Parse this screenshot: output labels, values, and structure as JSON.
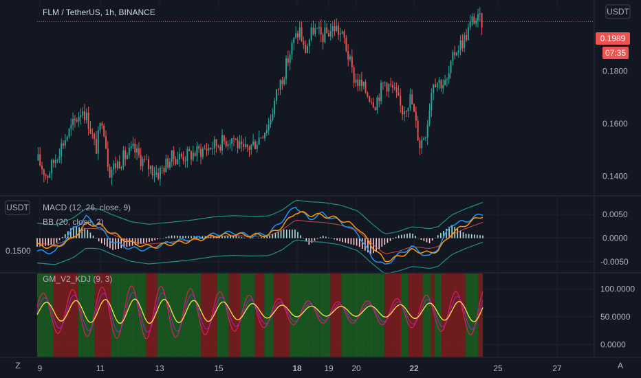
{
  "header": {
    "title": "FLM / TetherUS, 1h, BINANCE",
    "currency_button": "USDT",
    "left_currency_button": "USDT"
  },
  "price_label": {
    "value": "0.1989",
    "countdown": "07:35"
  },
  "macd_panel": {
    "title": "MACD (12, 26, close, 9)",
    "bb_title": "BB (20, close, 2)",
    "left_scale_label": "0.1500"
  },
  "kdj_panel": {
    "title": "GM_V2_KDJ (9, 3)"
  },
  "bottom": {
    "z_button": "Z",
    "a_button": "A"
  },
  "colors": {
    "up": "#26a69a",
    "down": "#ef5350",
    "price_line": "#ef5350",
    "macd": "#2196f3",
    "signal": "#ff9800",
    "bb": "#26a69a",
    "bb_mid": "#ef5350",
    "k": "#9c27b0",
    "d": "#ffeb3b",
    "j": "#e91e63",
    "bg_green": "#1b5e20",
    "bg_red": "#7f1d1d"
  },
  "chart_data": [
    {
      "type": "candlestick",
      "title": "FLM / TetherUS, 1h, BINANCE",
      "x_ticks": [
        "9",
        "11",
        "13",
        "15",
        "18",
        "19",
        "20",
        "22",
        "25",
        "27"
      ],
      "y_ticks": [
        "0.1400",
        "0.1600",
        "0.1800"
      ],
      "ylim": [
        0.1325,
        0.2045
      ],
      "last_price": 0.1989,
      "close_path": [
        {
          "t": 0,
          "v": 0.146
        },
        {
          "t": 0.02,
          "v": 0.14
        },
        {
          "t": 0.05,
          "v": 0.151
        },
        {
          "t": 0.08,
          "v": 0.16
        },
        {
          "t": 0.1,
          "v": 0.166
        },
        {
          "t": 0.115,
          "v": 0.16
        },
        {
          "t": 0.13,
          "v": 0.15
        },
        {
          "t": 0.145,
          "v": 0.163
        },
        {
          "t": 0.16,
          "v": 0.142
        },
        {
          "t": 0.185,
          "v": 0.146
        },
        {
          "t": 0.215,
          "v": 0.15
        },
        {
          "t": 0.24,
          "v": 0.145
        },
        {
          "t": 0.27,
          "v": 0.141
        },
        {
          "t": 0.3,
          "v": 0.147
        },
        {
          "t": 0.34,
          "v": 0.148
        },
        {
          "t": 0.37,
          "v": 0.15
        },
        {
          "t": 0.4,
          "v": 0.152
        },
        {
          "t": 0.44,
          "v": 0.155
        },
        {
          "t": 0.46,
          "v": 0.149
        },
        {
          "t": 0.49,
          "v": 0.153
        },
        {
          "t": 0.52,
          "v": 0.16
        },
        {
          "t": 0.54,
          "v": 0.173
        },
        {
          "t": 0.555,
          "v": 0.18
        },
        {
          "t": 0.575,
          "v": 0.191
        },
        {
          "t": 0.59,
          "v": 0.196
        },
        {
          "t": 0.6,
          "v": 0.187
        },
        {
          "t": 0.62,
          "v": 0.196
        },
        {
          "t": 0.64,
          "v": 0.193
        },
        {
          "t": 0.67,
          "v": 0.197
        },
        {
          "t": 0.69,
          "v": 0.192
        },
        {
          "t": 0.71,
          "v": 0.178
        },
        {
          "t": 0.73,
          "v": 0.174
        },
        {
          "t": 0.76,
          "v": 0.168
        },
        {
          "t": 0.78,
          "v": 0.176
        },
        {
          "t": 0.8,
          "v": 0.173
        },
        {
          "t": 0.82,
          "v": 0.165
        },
        {
          "t": 0.84,
          "v": 0.17
        },
        {
          "t": 0.86,
          "v": 0.152
        },
        {
          "t": 0.875,
          "v": 0.158
        },
        {
          "t": 0.89,
          "v": 0.177
        },
        {
          "t": 0.92,
          "v": 0.175
        },
        {
          "t": 0.94,
          "v": 0.188
        },
        {
          "t": 0.96,
          "v": 0.192
        },
        {
          "t": 0.98,
          "v": 0.2
        },
        {
          "t": 1.0,
          "v": 0.1989
        }
      ]
    },
    {
      "type": "line",
      "title": "MACD (12, 26, close, 9)",
      "y_ticks": [
        "0.0050",
        "0.0000",
        "-0.0050"
      ],
      "ylim": [
        -0.0072,
        0.0088
      ],
      "series": [
        {
          "name": "MACD",
          "x": [
            0,
            0.04,
            0.08,
            0.11,
            0.14,
            0.17,
            0.21,
            0.25,
            0.3,
            0.35,
            0.4,
            0.44,
            0.48,
            0.52,
            0.55,
            0.58,
            0.61,
            0.64,
            0.68,
            0.72,
            0.75,
            0.78,
            0.81,
            0.84,
            0.86,
            0.88,
            0.9,
            0.93,
            0.96,
            1.0
          ],
          "values": [
            -0.0028,
            -0.003,
            0.0018,
            0.0045,
            0.0022,
            -0.0008,
            -0.0022,
            -0.0024,
            -0.0008,
            -0.0002,
            0.0008,
            0.0012,
            0.0005,
            0.001,
            0.0038,
            0.0068,
            0.004,
            0.0052,
            0.0035,
            0.001,
            -0.004,
            -0.0058,
            -0.0036,
            -0.0018,
            -0.003,
            -0.004,
            -0.002,
            0.003,
            0.0035,
            0.0052
          ]
        },
        {
          "name": "Signal",
          "x": [
            0,
            0.04,
            0.08,
            0.11,
            0.14,
            0.17,
            0.21,
            0.25,
            0.3,
            0.35,
            0.4,
            0.44,
            0.48,
            0.52,
            0.55,
            0.58,
            0.61,
            0.64,
            0.68,
            0.72,
            0.75,
            0.78,
            0.81,
            0.84,
            0.86,
            0.88,
            0.9,
            0.93,
            0.96,
            1.0
          ],
          "values": [
            -0.0015,
            -0.002,
            0.0,
            0.003,
            0.0028,
            0.001,
            -0.001,
            -0.0018,
            -0.0012,
            -0.0005,
            0.0005,
            0.0008,
            0.0006,
            0.0007,
            0.0025,
            0.0055,
            0.005,
            0.0048,
            0.004,
            0.0022,
            -0.0015,
            -0.0048,
            -0.004,
            -0.0026,
            -0.0028,
            -0.0032,
            -0.0025,
            0.001,
            0.0028,
            0.0048
          ]
        }
      ]
    },
    {
      "type": "line",
      "title": "GM_V2_KDJ (9, 3)",
      "y_ticks": [
        "100.0000",
        "50.0000",
        "0.0000"
      ],
      "ylim": [
        -22,
        128
      ]
    }
  ]
}
